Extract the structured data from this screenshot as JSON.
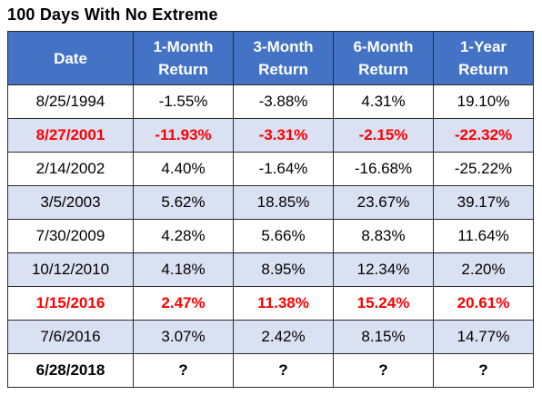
{
  "title": "100 Days With No Extreme",
  "columns": [
    {
      "line1": "Date",
      "line2": ""
    },
    {
      "line1": "1-Month",
      "line2": "Return"
    },
    {
      "line1": "3-Month",
      "line2": "Return"
    },
    {
      "line1": "6-Month",
      "line2": "Return"
    },
    {
      "line1": "1-Year",
      "line2": "Return"
    }
  ],
  "colors": {
    "header_bg": "#4472c4",
    "header_text": "#ffffff",
    "band_bg": "#d9e1f2",
    "highlight_text": "#ff0000"
  },
  "rows": [
    {
      "date": "8/25/1994",
      "m1": "-1.55%",
      "m3": "-3.88%",
      "m6": "4.31%",
      "y1": "19.10%",
      "shaded": false,
      "highlight": false,
      "bold": false
    },
    {
      "date": "8/27/2001",
      "m1": "-11.93%",
      "m3": "-3.31%",
      "m6": "-2.15%",
      "y1": "-22.32%",
      "shaded": true,
      "highlight": true,
      "bold": true
    },
    {
      "date": "2/14/2002",
      "m1": "4.40%",
      "m3": "-1.64%",
      "m6": "-16.68%",
      "y1": "-25.22%",
      "shaded": false,
      "highlight": false,
      "bold": false
    },
    {
      "date": "3/5/2003",
      "m1": "5.62%",
      "m3": "18.85%",
      "m6": "23.67%",
      "y1": "39.17%",
      "shaded": true,
      "highlight": false,
      "bold": false
    },
    {
      "date": "7/30/2009",
      "m1": "4.28%",
      "m3": "5.66%",
      "m6": "8.83%",
      "y1": "11.64%",
      "shaded": false,
      "highlight": false,
      "bold": false
    },
    {
      "date": "10/12/2010",
      "m1": "4.18%",
      "m3": "8.95%",
      "m6": "12.34%",
      "y1": "2.20%",
      "shaded": true,
      "highlight": false,
      "bold": false
    },
    {
      "date": "1/15/2016",
      "m1": "2.47%",
      "m3": "11.38%",
      "m6": "15.24%",
      "y1": "20.61%",
      "shaded": false,
      "highlight": true,
      "bold": true
    },
    {
      "date": "7/6/2016",
      "m1": "3.07%",
      "m3": "2.42%",
      "m6": "8.15%",
      "y1": "14.77%",
      "shaded": true,
      "highlight": false,
      "bold": false
    },
    {
      "date": "6/28/2018",
      "m1": "?",
      "m3": "?",
      "m6": "?",
      "y1": "?",
      "shaded": false,
      "highlight": false,
      "bold": true
    }
  ]
}
